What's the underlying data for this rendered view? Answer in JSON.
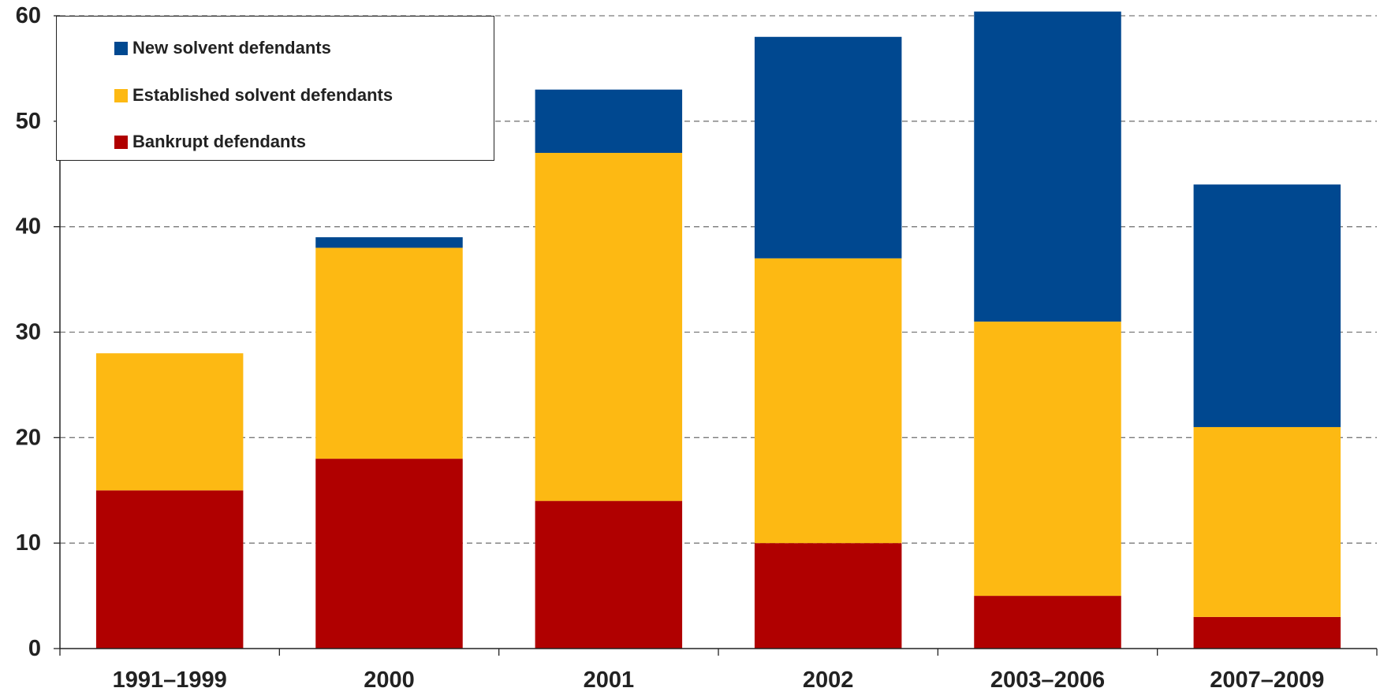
{
  "chart_data": {
    "type": "bar",
    "stacked": true,
    "title": "",
    "xlabel": "",
    "ylabel": "",
    "categories": [
      "1991–1999",
      "2000",
      "2001",
      "2002",
      "2003–2006",
      "2007–2009"
    ],
    "series": [
      {
        "name": "Bankrupt defendants",
        "color": "#B00000",
        "values": [
          15,
          18,
          14,
          10,
          5,
          3
        ]
      },
      {
        "name": "Established solvent defendants",
        "color": "#FDB913",
        "values": [
          13,
          20,
          33,
          27,
          26,
          18
        ]
      },
      {
        "name": "New solvent defendants",
        "color": "#004890",
        "values": [
          0,
          1,
          6,
          21,
          29.4,
          23
        ]
      }
    ],
    "ylim": [
      0,
      60
    ],
    "yticks": [
      "0",
      "10",
      "20",
      "30",
      "40",
      "50",
      "60"
    ],
    "grid": "horizontal-dashed",
    "legend_position": "top-left",
    "legend_order": [
      "New solvent defendants",
      "Established solvent defendants",
      "Bankrupt defendants"
    ]
  }
}
